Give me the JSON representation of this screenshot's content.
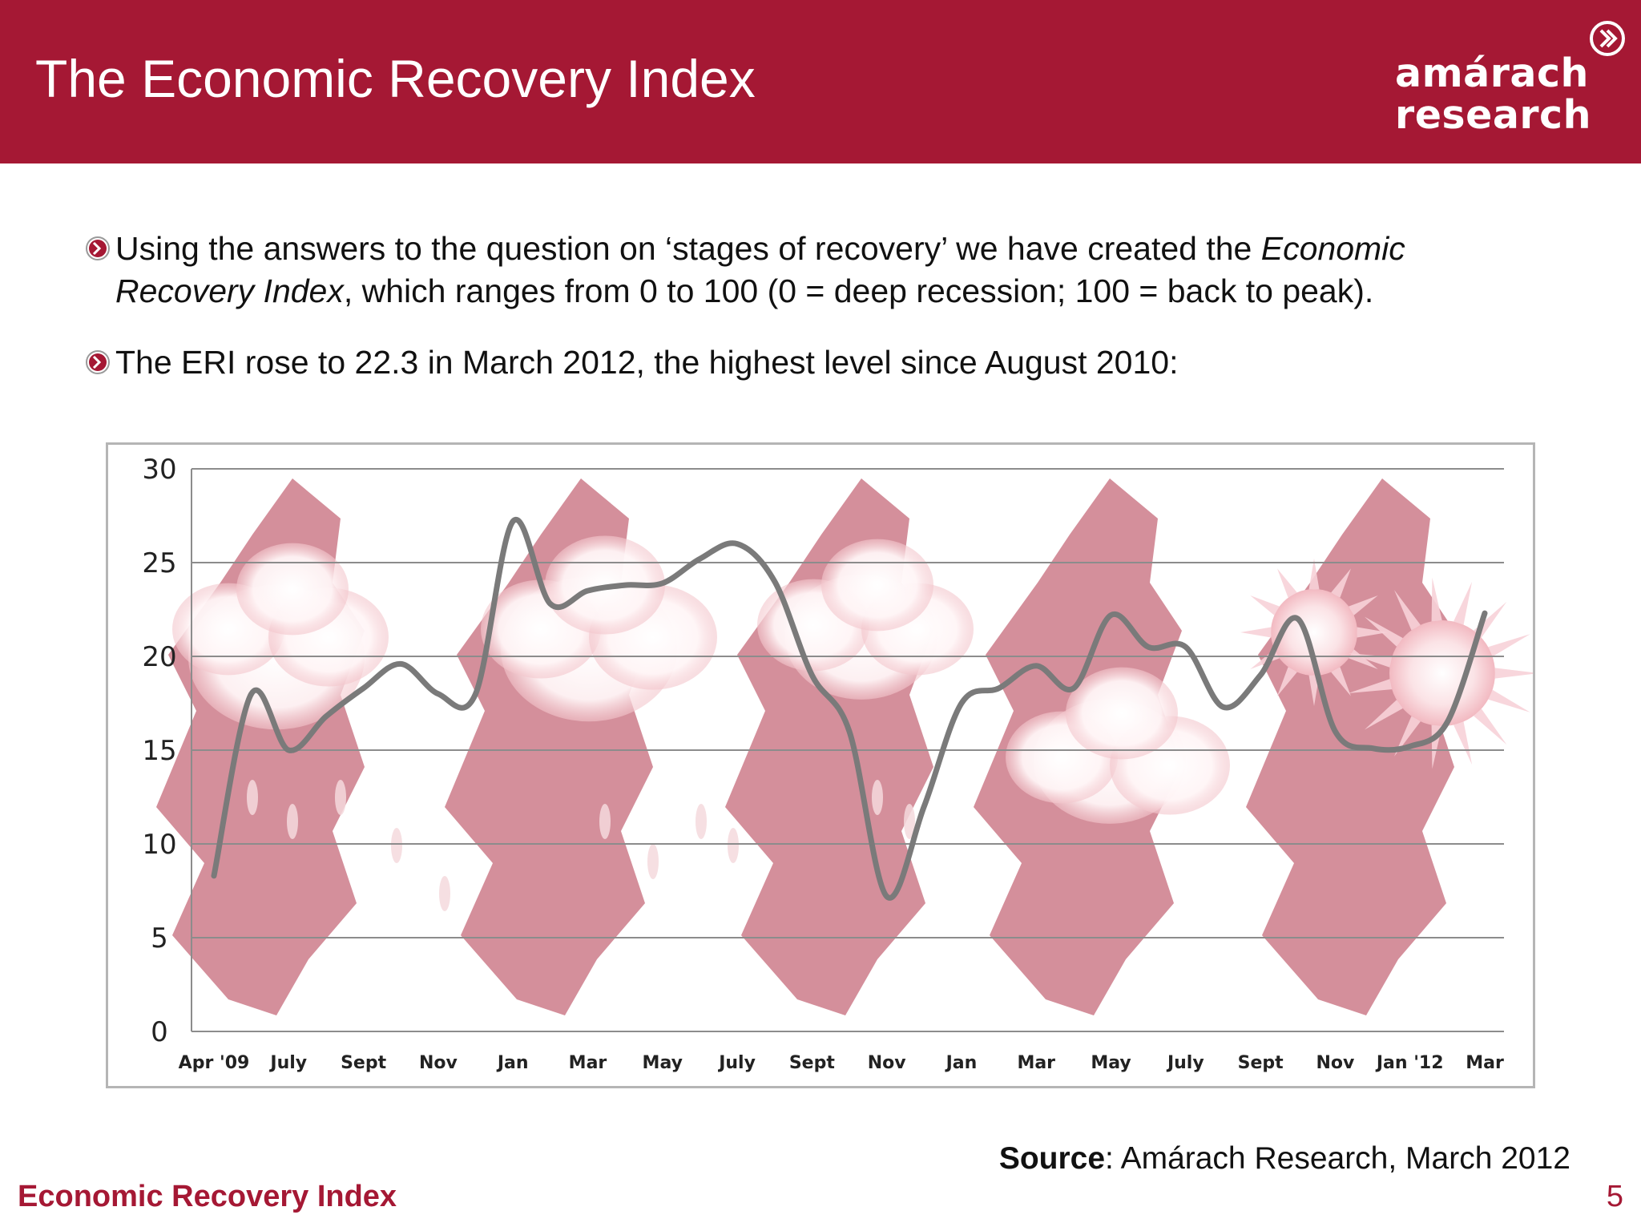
{
  "header": {
    "title": "The Economic Recovery Index",
    "logo_line1": "amárach",
    "logo_line2": "research",
    "bg_color": "#a51834"
  },
  "bullets": [
    {
      "pre": "Using the answers to the question on ‘stages of recovery’ we have created the ",
      "em1": "Economic",
      "em2": "Recovery Index",
      "post": ", which ranges from 0 to 100 (0 = deep recession; 100 = back to peak)."
    },
    {
      "text": "The ERI rose to 22.3 in March 2012, the highest level since August 2010:"
    }
  ],
  "chart_data": {
    "type": "line",
    "ylim": [
      0,
      30
    ],
    "yticks": [
      0,
      5,
      10,
      15,
      20,
      25,
      30
    ],
    "xlabels": [
      "Apr '09",
      "July",
      "Sept",
      "Nov",
      "Jan",
      "Mar",
      "May",
      "July",
      "Sept",
      "Nov",
      "Jan",
      "Mar",
      "May",
      "July",
      "Sept",
      "Nov",
      "Jan '12",
      "Mar"
    ],
    "series": [
      {
        "color": "#7a7a7a",
        "points": [
          {
            "x": 0,
            "y": 8.3
          },
          {
            "x": 0.5,
            "y": 18.0
          },
          {
            "x": 1.0,
            "y": 15.0
          },
          {
            "x": 1.5,
            "y": 16.8
          },
          {
            "x": 2.0,
            "y": 18.3
          },
          {
            "x": 2.5,
            "y": 19.6
          },
          {
            "x": 3.0,
            "y": 18.0
          },
          {
            "x": 3.5,
            "y": 18.0
          },
          {
            "x": 4.0,
            "y": 27.2
          },
          {
            "x": 4.5,
            "y": 22.8
          },
          {
            "x": 5.0,
            "y": 23.5
          },
          {
            "x": 5.5,
            "y": 23.8
          },
          {
            "x": 6.0,
            "y": 23.9
          },
          {
            "x": 6.5,
            "y": 25.2
          },
          {
            "x": 7.0,
            "y": 26.0
          },
          {
            "x": 7.5,
            "y": 24.0
          },
          {
            "x": 8.0,
            "y": 19.0
          },
          {
            "x": 8.5,
            "y": 16.0
          },
          {
            "x": 9.0,
            "y": 7.2
          },
          {
            "x": 9.5,
            "y": 12.0
          },
          {
            "x": 10.0,
            "y": 17.5
          },
          {
            "x": 10.5,
            "y": 18.3
          },
          {
            "x": 11.0,
            "y": 19.5
          },
          {
            "x": 11.5,
            "y": 18.3
          },
          {
            "x": 12.0,
            "y": 22.2
          },
          {
            "x": 12.5,
            "y": 20.5
          },
          {
            "x": 13.0,
            "y": 20.5
          },
          {
            "x": 13.5,
            "y": 17.3
          },
          {
            "x": 14.0,
            "y": 19.0
          },
          {
            "x": 14.5,
            "y": 22.0
          },
          {
            "x": 15.0,
            "y": 16.0
          },
          {
            "x": 15.5,
            "y": 15.1
          },
          {
            "x": 16.0,
            "y": 15.2
          },
          {
            "x": 16.5,
            "y": 16.5
          },
          {
            "x": 17.0,
            "y": 22.3
          }
        ]
      }
    ],
    "grid": true
  },
  "source": {
    "label": "Source",
    "text": ": Amárach Research, March 2012"
  },
  "footer": {
    "title": "Economic Recovery Index",
    "page": "5"
  }
}
